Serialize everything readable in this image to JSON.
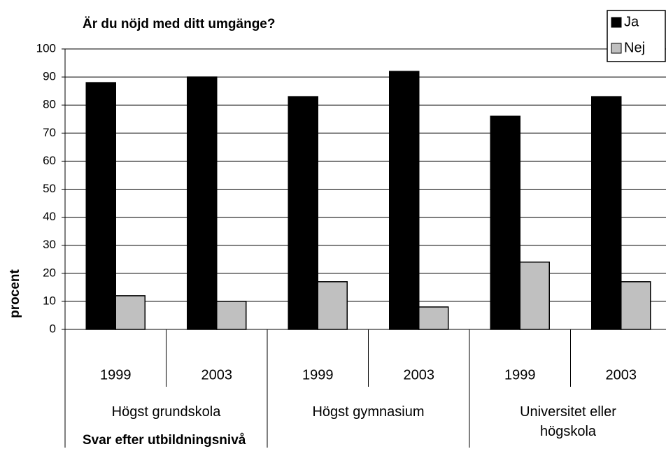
{
  "chart_data": {
    "type": "bar",
    "title": "Är du nöjd med ditt umgänge?",
    "y_label": "procent",
    "x_label": "Svar efter utbildningsnivå",
    "categories": [
      "1999",
      "2003",
      "1999",
      "2003",
      "1999",
      "2003"
    ],
    "category_groups": [
      "Högst grundskola",
      "Högst gymnasium",
      "Universitet eller högskola"
    ],
    "series": [
      {
        "name": "Ja",
        "color": "#000000",
        "values": [
          88,
          90,
          83,
          92,
          76,
          83
        ]
      },
      {
        "name": "Nej",
        "color": "#c0c0c0",
        "values": [
          12,
          10,
          17,
          8,
          24,
          17
        ]
      }
    ],
    "ylim": [
      0,
      100
    ],
    "yticks": [
      0,
      10,
      20,
      30,
      40,
      50,
      60,
      70,
      80,
      90,
      100
    ],
    "grid": true,
    "legend": "top-right"
  }
}
